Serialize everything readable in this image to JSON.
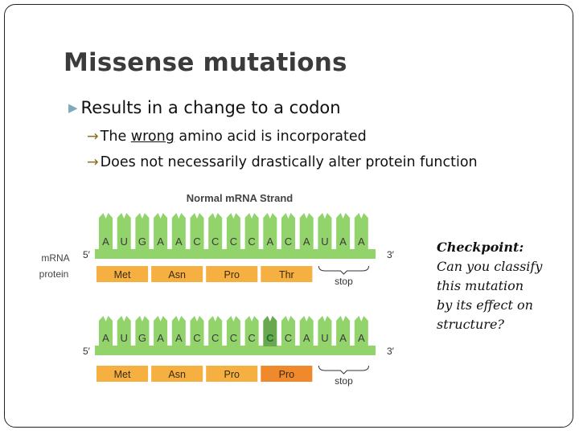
{
  "slide": {
    "title": "Missense mutations",
    "bullet": "Results in a change to a codon",
    "subpoints": [
      {
        "arrow": "→",
        "before": "The ",
        "underlined": "wrong",
        "after": " amino acid is incorporated"
      },
      {
        "arrow": "→",
        "text": "Does not necessarily drastically alter protein function"
      }
    ],
    "checkpoint": {
      "heading": "Checkpoint:",
      "lines": [
        "Can you classify",
        "this mutation",
        "by its effect on",
        "structure?"
      ]
    }
  },
  "diagram": {
    "title": "Normal mRNA Strand",
    "row_labels": {
      "mrna": "mRNA",
      "protein": "protein"
    },
    "five_prime": "5′",
    "three_prime": "3′",
    "colors": {
      "strand": "#92d36c",
      "strand_dark": "#6aa84f",
      "amino": "#f6b042",
      "amino_mutant": "#f0892b",
      "mutant_base": "#1e6b2e"
    },
    "normal": {
      "bases": [
        "A",
        "U",
        "G",
        "A",
        "A",
        "C",
        "C",
        "C",
        "C",
        "A",
        "C",
        "A",
        "U",
        "A",
        "A"
      ],
      "amino_acids": [
        "Met",
        "Asn",
        "Pro",
        "Thr"
      ],
      "stop_label": "stop"
    },
    "mutant": {
      "bases": [
        "A",
        "U",
        "G",
        "A",
        "A",
        "C",
        "C",
        "C",
        "C",
        "C",
        "C",
        "A",
        "U",
        "A",
        "A"
      ],
      "amino_acids": [
        "Met",
        "Asn",
        "Pro",
        "Pro"
      ],
      "stop_label": "stop",
      "mutated_base_index": 9,
      "mutated_codon_index": 3
    }
  }
}
